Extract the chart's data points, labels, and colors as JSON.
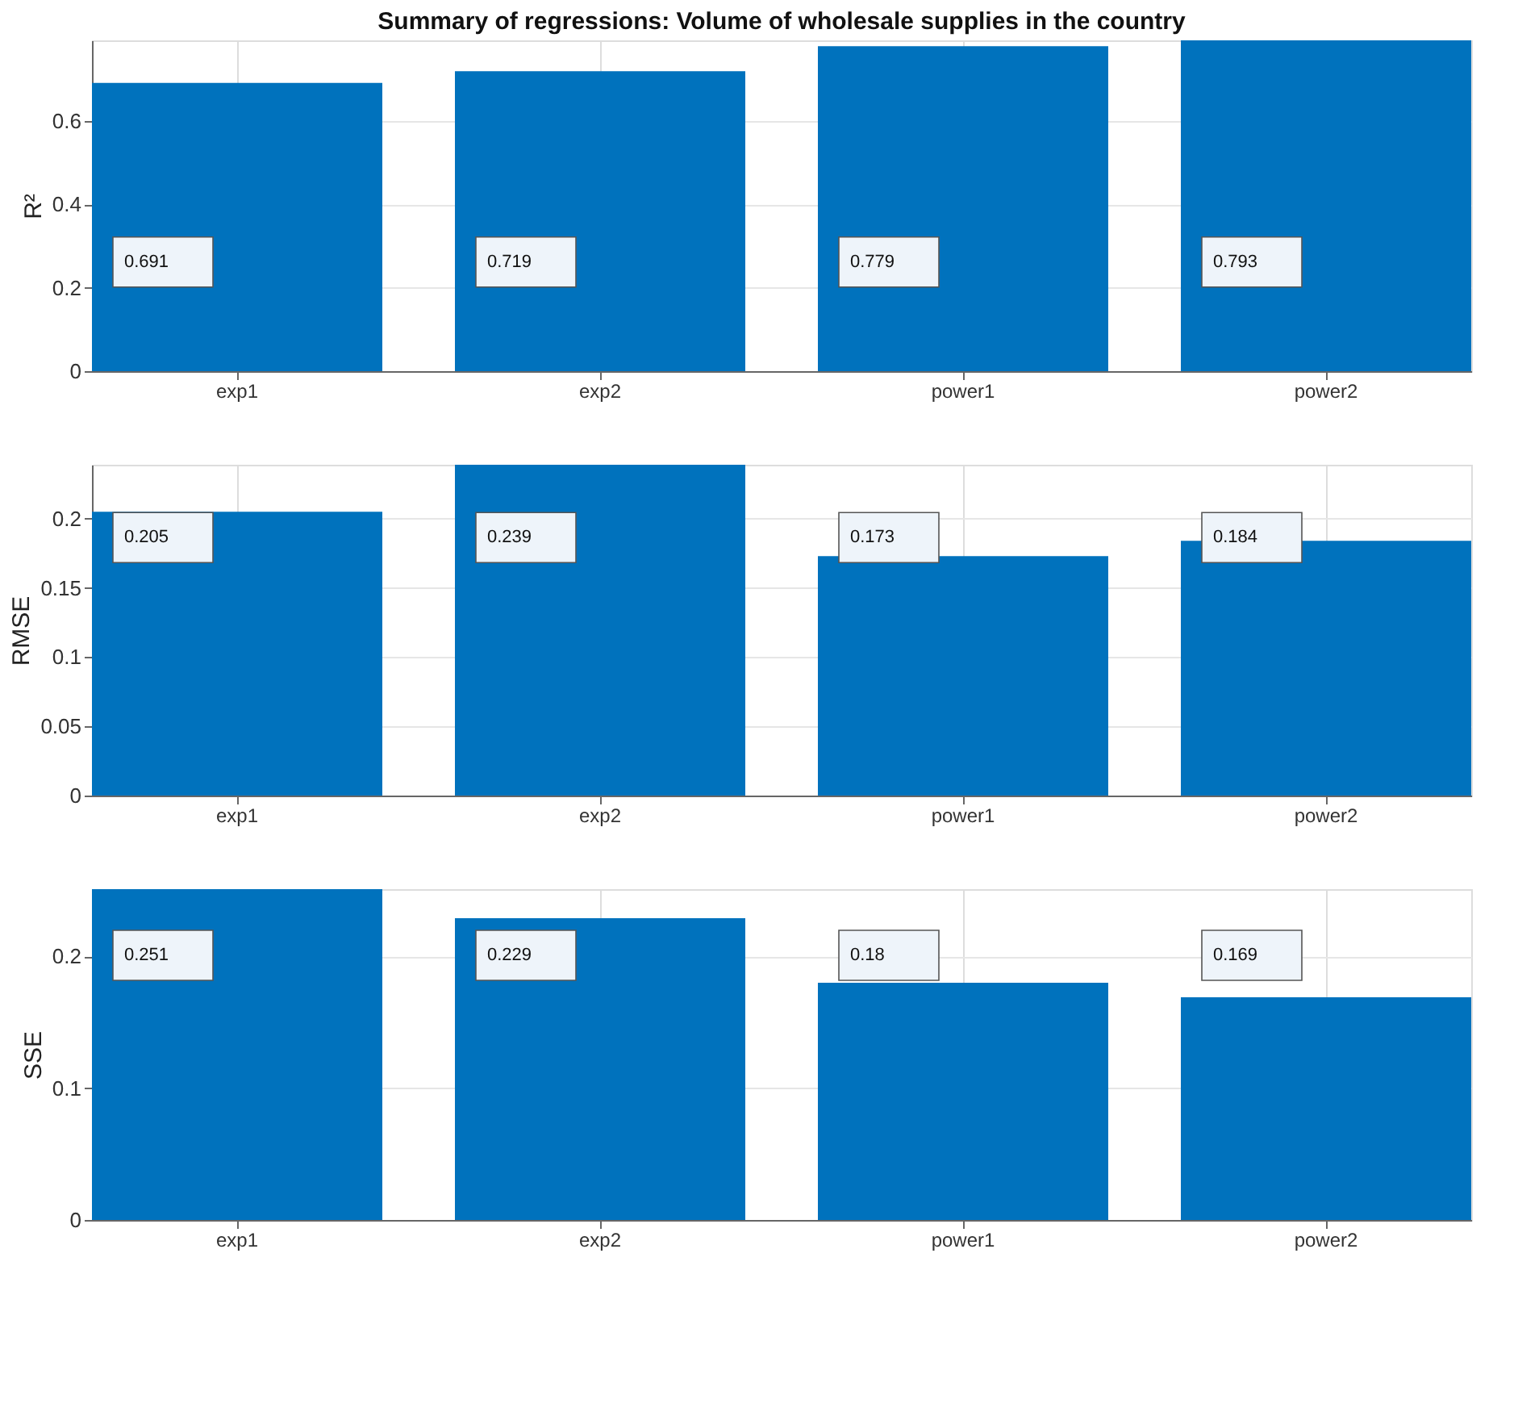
{
  "chart_data": [
    {
      "type": "bar",
      "title": "Summary of regressions: Volume of wholesale supplies in the country",
      "ylabel": "R²",
      "categories": [
        "exp1",
        "exp2",
        "power1",
        "power2"
      ],
      "values": [
        0.691,
        0.719,
        0.779,
        0.793
      ],
      "color": "#0072bd",
      "ylim": [
        0,
        0.793
      ],
      "yticks": [
        0,
        0.2,
        0.4,
        0.6
      ],
      "grid": true,
      "data_labels": true
    },
    {
      "type": "bar",
      "ylabel": "RMSE",
      "categories": [
        "exp1",
        "exp2",
        "power1",
        "power2"
      ],
      "values": [
        0.205,
        0.239,
        0.173,
        0.184
      ],
      "color": "#0072bd",
      "ylim": [
        0,
        0.239
      ],
      "yticks": [
        0,
        0.05,
        0.1,
        0.15,
        0.2
      ],
      "grid": true,
      "data_labels": true
    },
    {
      "type": "bar",
      "ylabel": "SSE",
      "categories": [
        "exp1",
        "exp2",
        "power1",
        "power2"
      ],
      "values": [
        0.251,
        0.229,
        0.18,
        0.169
      ],
      "color": "#0072bd",
      "ylim": [
        0,
        0.251
      ],
      "yticks": [
        0,
        0.1,
        0.2
      ],
      "grid": true,
      "data_labels": true
    }
  ]
}
